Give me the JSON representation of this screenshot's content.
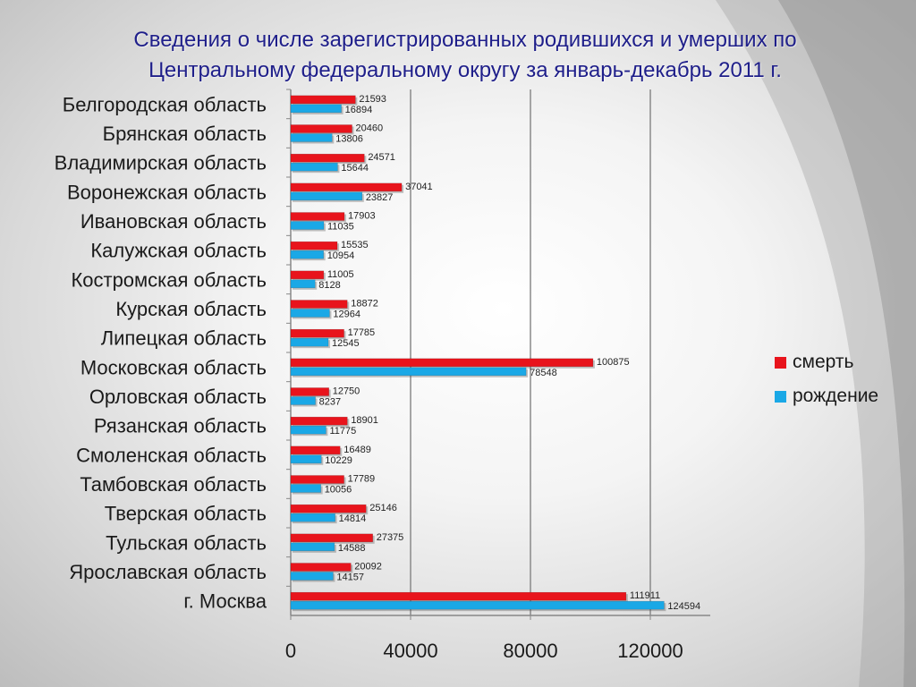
{
  "title_line1": "Сведения о числе зарегистрированных родившихся и умерших по",
  "title_line2": "Центральному федеральному округу за январь-декабрь 2011 г.",
  "colors": {
    "title": "#1f1f8a",
    "death": "#e8141c",
    "birth": "#1aa8e6"
  },
  "chart_data": {
    "type": "bar",
    "orientation": "horizontal",
    "categories": [
      "Белгородская область",
      "Брянская область",
      "Владимирская область",
      "Воронежская область",
      "Ивановская область",
      "Калужская область",
      "Костромская область",
      "Курская область",
      "Липецкая область",
      "Московская область",
      "Орловская область",
      "Рязанская область",
      "Смоленская область",
      "Тамбовская область",
      "Тверская область",
      "Тульская область",
      "Ярославская область",
      "г. Москва"
    ],
    "series": [
      {
        "name": "смерть",
        "color": "#e8141c",
        "values": [
          21593,
          20460,
          24571,
          37041,
          17903,
          15535,
          11005,
          18872,
          17785,
          100875,
          12750,
          18901,
          16489,
          17789,
          25146,
          27375,
          20092,
          111911
        ]
      },
      {
        "name": "рождение",
        "color": "#1aa8e6",
        "values": [
          16894,
          13806,
          15644,
          23827,
          11035,
          10954,
          8128,
          12964,
          12545,
          78548,
          8237,
          11775,
          10229,
          10056,
          14814,
          14588,
          14157,
          124594
        ]
      }
    ],
    "xlim": [
      0,
      140000
    ],
    "xticks": [
      "0",
      "40000",
      "80000",
      "120000"
    ],
    "xtick_values": [
      0,
      40000,
      80000,
      120000
    ],
    "grid": true,
    "legend_position": "right"
  }
}
